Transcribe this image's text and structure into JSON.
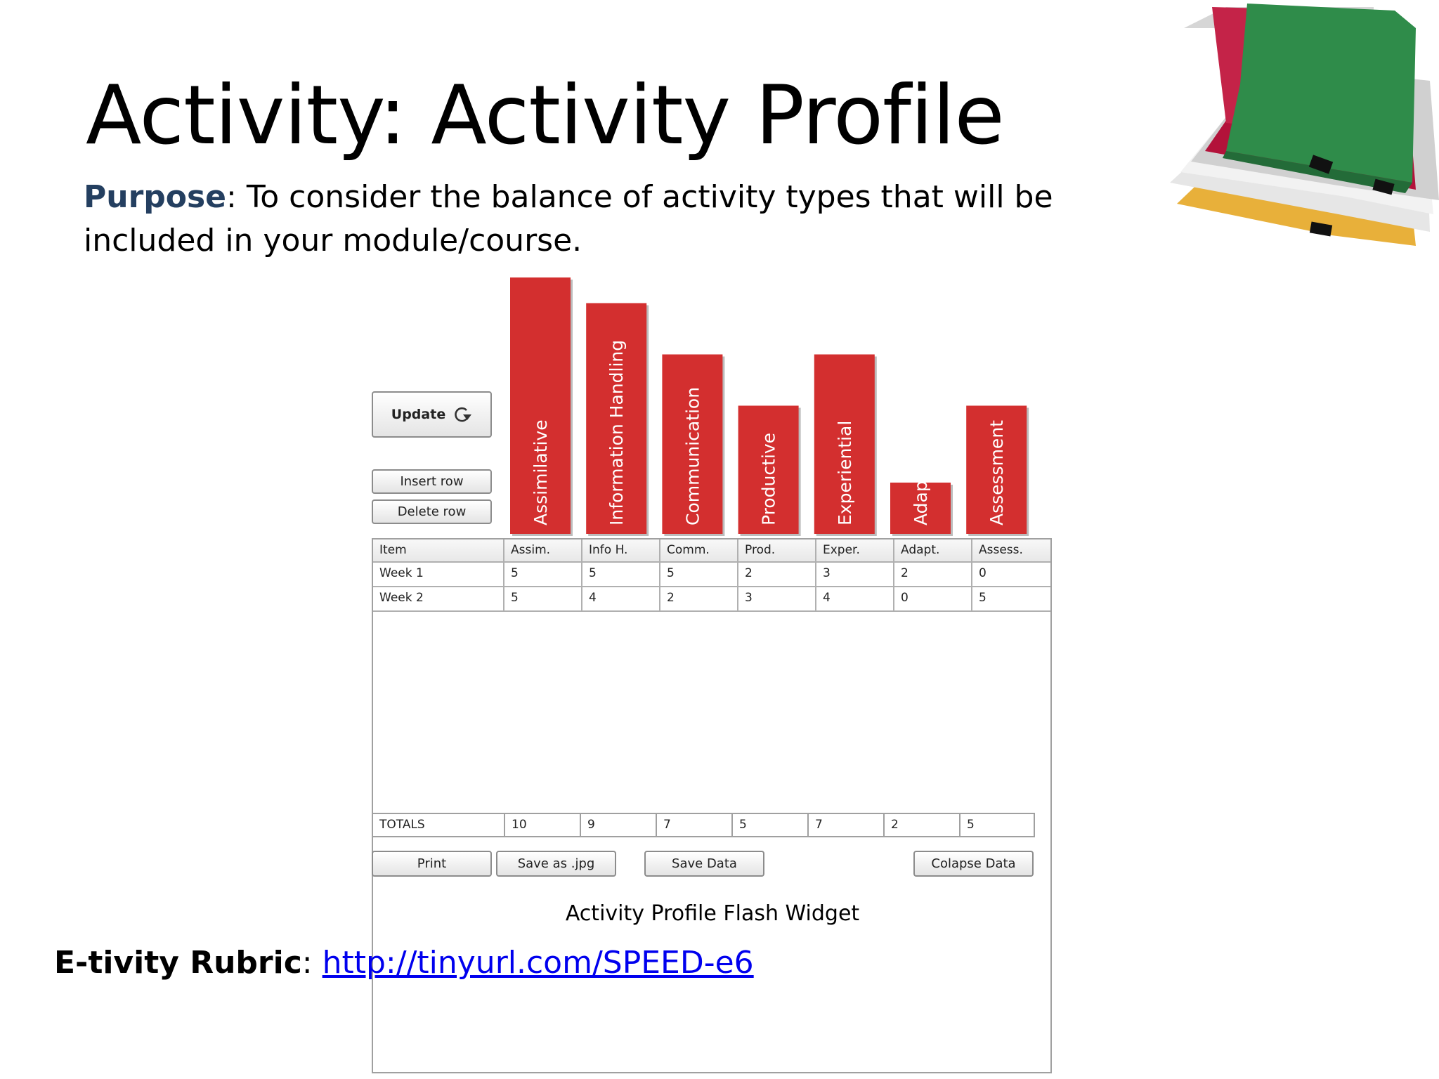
{
  "slide": {
    "title": "Activity: Activity Profile",
    "purpose_label": "Purpose",
    "purpose_sep": ":",
    "purpose_text": " To consider the balance of activity types that will be included in your module/course.",
    "caption": "Activity Profile Flash Widget",
    "rubric_label": "E-tivity Rubric",
    "rubric_sep": ": ",
    "rubric_link": "http://tinyurl.com/SPEED-e6"
  },
  "widget": {
    "update_label": "Update",
    "insert_row_label": "Insert row",
    "delete_row_label": "Delete row",
    "print_label": "Print",
    "save_jpg_label": "Save as .jpg",
    "save_data_label": "Save Data",
    "collapse_label": "Colapse Data",
    "bar_color": "#d32f2f",
    "table": {
      "headers": [
        "Item",
        "Assim.",
        "Info H.",
        "Comm.",
        "Prod.",
        "Exper.",
        "Adapt.",
        "Assess."
      ],
      "rows": [
        [
          "Week 1",
          "5",
          "5",
          "5",
          "2",
          "3",
          "2",
          "0"
        ],
        [
          "Week 2",
          "5",
          "4",
          "2",
          "3",
          "4",
          "0",
          "5"
        ]
      ],
      "totals": [
        "TOTALS",
        "10",
        "9",
        "7",
        "5",
        "7",
        "2",
        "5"
      ]
    }
  },
  "chart_data": {
    "type": "bar",
    "categories": [
      "Assimilative",
      "Information Handling",
      "Communication",
      "Productive",
      "Experiential",
      "Adaptive",
      "Assessment"
    ],
    "values": [
      10,
      9,
      7,
      5,
      7,
      2,
      5
    ]
  }
}
